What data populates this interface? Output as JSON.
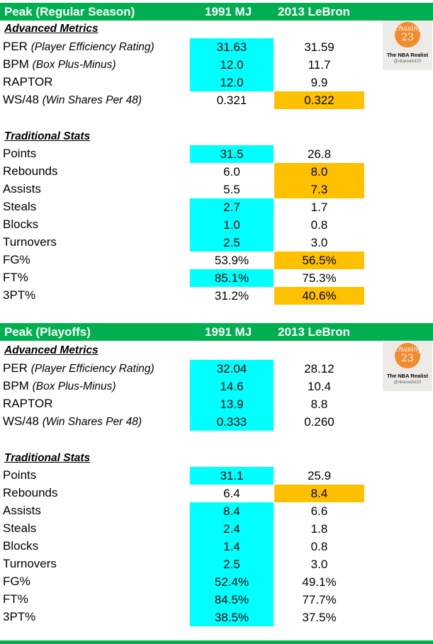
{
  "regular": {
    "header": {
      "title": "Peak (Regular Season)",
      "col1": "1991 MJ",
      "col2": "2013 LeBron"
    },
    "advanced_label": "Advanced Metrics",
    "advanced": [
      {
        "label": "PER",
        "note": "(Player Efficiency Rating)",
        "v1": "31.63",
        "v2": "31.59"
      },
      {
        "label": "BPM",
        "note": "(Box Plus-Minus)",
        "v1": "12.0",
        "v2": "11.7"
      },
      {
        "label": "RAPTOR",
        "note": "",
        "v1": "12.0",
        "v2": "9.9"
      },
      {
        "label": "WS/48",
        "note": "(Win Shares Per 48)",
        "v1": "0.321",
        "v2": "0.322"
      }
    ],
    "traditional_label": "Traditional Stats",
    "traditional": [
      {
        "label": "Points",
        "v1": "31.5",
        "v2": "26.8"
      },
      {
        "label": "Rebounds",
        "v1": "6.0",
        "v2": "8.0"
      },
      {
        "label": "Assists",
        "v1": "5.5",
        "v2": "7.3"
      },
      {
        "label": "Steals",
        "v1": "2.7",
        "v2": "1.7"
      },
      {
        "label": "Blocks",
        "v1": "1.0",
        "v2": "0.8"
      },
      {
        "label": "Turnovers",
        "v1": "2.5",
        "v2": "3.0"
      },
      {
        "label": "FG%",
        "v1": "53.9%",
        "v2": "56.5%"
      },
      {
        "label": "FT%",
        "v1": "85.1%",
        "v2": "75.3%"
      },
      {
        "label": "3PT%",
        "v1": "31.2%",
        "v2": "40.6%"
      }
    ]
  },
  "playoffs": {
    "header": {
      "title": "Peak (Playoffs)",
      "col1": "1991 MJ",
      "col2": "2013 LeBron"
    },
    "advanced_label": "Advanced Metrics",
    "advanced": [
      {
        "label": "PER",
        "note": "(Player Efficiency Rating)",
        "v1": "32.04",
        "v2": "28.12"
      },
      {
        "label": "BPM",
        "note": "(Box Plus-Minus)",
        "v1": "14.6",
        "v2": "10.4"
      },
      {
        "label": "RAPTOR",
        "note": "",
        "v1": "13.9",
        "v2": "8.8"
      },
      {
        "label": "WS/48",
        "note": "(Win Shares Per 48)",
        "v1": "0.333",
        "v2": "0.260"
      }
    ],
    "traditional_label": "Traditional Stats",
    "traditional": [
      {
        "label": "Points",
        "v1": "31.1",
        "v2": "25.9"
      },
      {
        "label": "Rebounds",
        "v1": "6.4",
        "v2": "8.4"
      },
      {
        "label": "Assists",
        "v1": "8.4",
        "v2": "6.6"
      },
      {
        "label": "Steals",
        "v1": "2.4",
        "v2": "1.8"
      },
      {
        "label": "Blocks",
        "v1": "1.4",
        "v2": "0.8"
      },
      {
        "label": "Turnovers",
        "v1": "2.5",
        "v2": "3.0"
      },
      {
        "label": "FG%",
        "v1": "52.4%",
        "v2": "49.1%"
      },
      {
        "label": "FT%",
        "v1": "84.5%",
        "v2": "77.7%"
      },
      {
        "label": "3PT%",
        "v1": "38.5%",
        "v2": "37.5%"
      }
    ]
  },
  "logo": {
    "line1": "chasing",
    "line2": "23",
    "brand": "The NBA Realist",
    "handle": "@nbarealist23"
  },
  "colors": {
    "header": "#00b050",
    "mj_highlight": "#00ffff",
    "lebron_highlight": "#ffc000"
  }
}
